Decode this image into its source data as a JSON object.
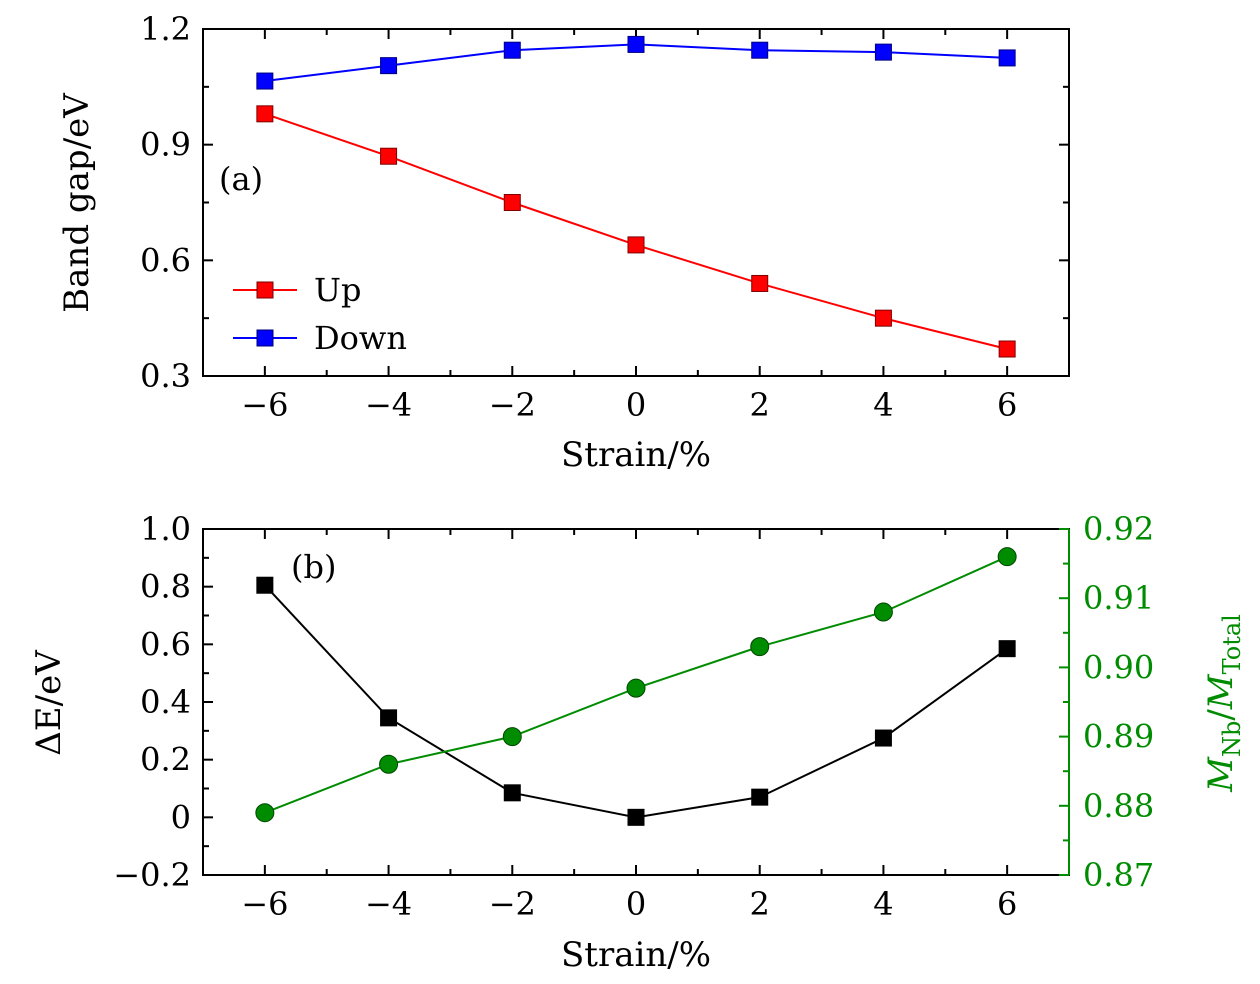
{
  "chart_data": [
    {
      "type": "line",
      "panel_label": "(a)",
      "xlabel": "Strain/%",
      "ylabel": "Band gap/eV",
      "xlim": [
        -7,
        7
      ],
      "ylim": [
        0.3,
        1.2
      ],
      "x_ticks": [
        "−6",
        "−4",
        "−2",
        "0",
        "2",
        "4",
        "6"
      ],
      "y_ticks": [
        "0.3",
        "0.6",
        "0.9",
        "1.2"
      ],
      "x": [
        -6,
        -4,
        -2,
        0,
        2,
        4,
        6
      ],
      "legend_position": "bottom-left",
      "series": [
        {
          "name": "Up",
          "marker": "square",
          "color": "#ff0000",
          "values": [
            0.98,
            0.87,
            0.75,
            0.64,
            0.54,
            0.45,
            0.37
          ]
        },
        {
          "name": "Down",
          "marker": "square",
          "color": "#0000ff",
          "values": [
            1.065,
            1.105,
            1.145,
            1.16,
            1.145,
            1.14,
            1.125
          ]
        }
      ],
      "grid": false
    },
    {
      "type": "line",
      "panel_label": "(b)",
      "xlabel": "Strain/%",
      "ylabel": "ΔE/eV",
      "ylabel_right_main": "M",
      "ylabel_right_sub1": "Nb",
      "ylabel_right_sep": "/",
      "ylabel_right_main2": "M",
      "ylabel_right_sub2": "Total",
      "xlim": [
        -7,
        7
      ],
      "ylim": [
        -0.2,
        1.0
      ],
      "ylim_right": [
        0.87,
        0.92
      ],
      "x_ticks": [
        "−6",
        "−4",
        "−2",
        "0",
        "2",
        "4",
        "6"
      ],
      "y_ticks": [
        "−0.2",
        "0",
        "0.2",
        "0.4",
        "0.6",
        "0.8",
        "1.0"
      ],
      "y_ticks_right": [
        "0.87",
        "0.88",
        "0.89",
        "0.90",
        "0.91",
        "0.92"
      ],
      "x": [
        -6,
        -4,
        -2,
        0,
        2,
        4,
        6
      ],
      "series": [
        {
          "axis": "left",
          "marker": "square",
          "color": "#000000",
          "values": [
            0.805,
            0.345,
            0.085,
            0.0,
            0.07,
            0.275,
            0.585
          ]
        },
        {
          "axis": "right",
          "marker": "circle",
          "color": "#008c00",
          "values": [
            0.879,
            0.886,
            0.89,
            0.897,
            0.903,
            0.908,
            0.916
          ]
        }
      ],
      "grid": false
    }
  ]
}
